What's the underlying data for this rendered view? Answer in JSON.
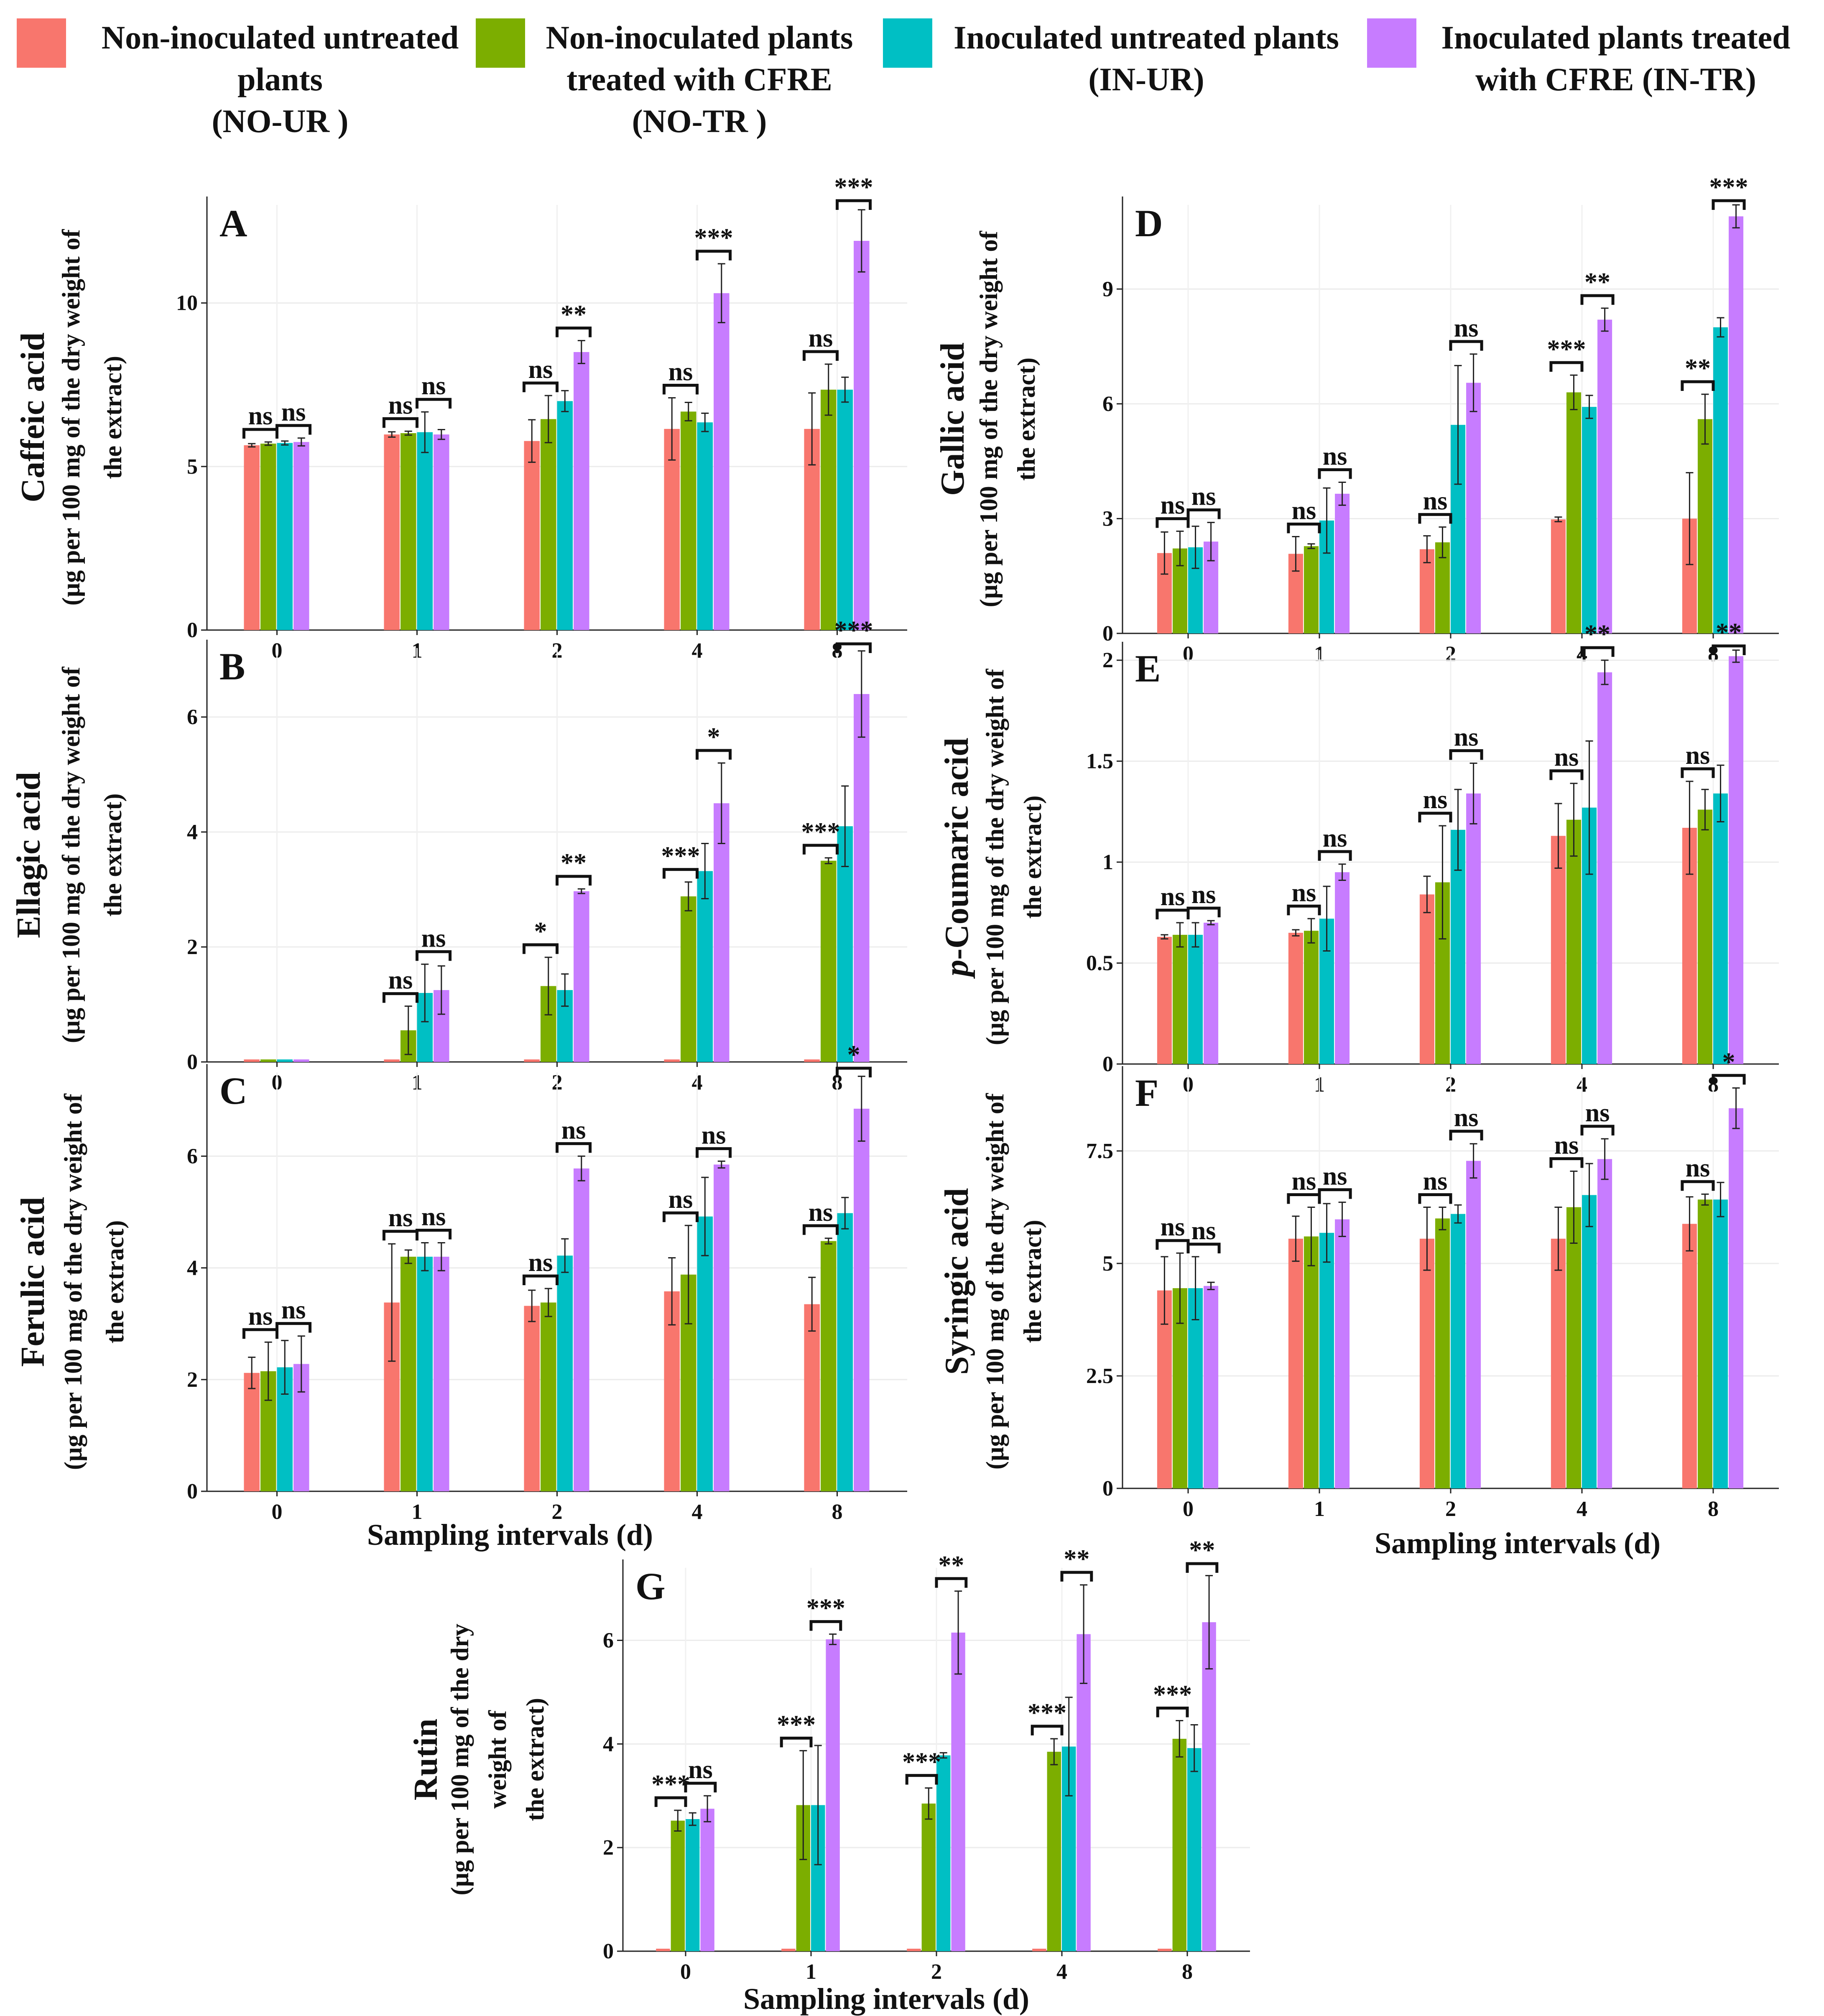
{
  "legend": {
    "items": [
      {
        "label_lines": [
          "Non-inoculated untreated",
          "plants",
          "(NO-UR )"
        ],
        "color": "#f8766d"
      },
      {
        "label_lines": [
          "Non-inoculated plants",
          "treated with CFRE",
          "(NO-TR )"
        ],
        "color": "#7cae00"
      },
      {
        "label_lines": [
          "Inoculated untreated plants",
          "(IN-UR)"
        ],
        "color": "#00bfc4"
      },
      {
        "label_lines": [
          "Inoculated plants treated",
          "with CFRE (IN-TR)"
        ],
        "color": "#c77cff"
      }
    ]
  },
  "x_axis_label": "Sampling intervals (d)",
  "chart_data": [
    {
      "id": "A",
      "type": "bar",
      "title": "Caffeic acid",
      "ylabel_lines": [
        "(µg per 100 mg of the dry weight of",
        "the extract)"
      ],
      "categories": [
        "0",
        "1",
        "2",
        "4",
        "8"
      ],
      "ylim": [
        0,
        13
      ],
      "yticks": [
        0,
        5,
        10
      ],
      "ytick_labels": [
        "0",
        "5",
        "10"
      ],
      "series": [
        {
          "name": "NO-UR",
          "values": [
            5.65,
            5.98,
            5.78,
            6.15,
            6.15
          ],
          "errors": [
            0.05,
            0.08,
            0.65,
            0.95,
            1.1
          ]
        },
        {
          "name": "NO-TR",
          "values": [
            5.7,
            6.02,
            6.45,
            6.68,
            7.35
          ],
          "errors": [
            0.05,
            0.06,
            0.72,
            0.28,
            0.78
          ]
        },
        {
          "name": "IN-UR",
          "values": [
            5.72,
            6.05,
            7.0,
            6.35,
            7.35
          ],
          "errors": [
            0.06,
            0.62,
            0.32,
            0.28,
            0.38
          ]
        },
        {
          "name": "IN-TR",
          "values": [
            5.75,
            5.98,
            8.5,
            10.3,
            11.9
          ],
          "errors": [
            0.12,
            0.15,
            0.35,
            0.9,
            0.95
          ]
        }
      ],
      "significance": [
        {
          "category": "0",
          "pair": "NO",
          "text": "ns"
        },
        {
          "category": "0",
          "pair": "IN",
          "text": "ns"
        },
        {
          "category": "1",
          "pair": "NO",
          "text": "ns"
        },
        {
          "category": "1",
          "pair": "IN",
          "text": "ns"
        },
        {
          "category": "2",
          "pair": "NO",
          "text": "ns"
        },
        {
          "category": "2",
          "pair": "IN",
          "text": "**"
        },
        {
          "category": "4",
          "pair": "NO",
          "text": "ns"
        },
        {
          "category": "4",
          "pair": "IN",
          "text": "***"
        },
        {
          "category": "8",
          "pair": "NO",
          "text": "ns"
        },
        {
          "category": "8",
          "pair": "IN",
          "text": "***"
        }
      ]
    },
    {
      "id": "B",
      "type": "bar",
      "title": "Ellagic acid",
      "ylabel_lines": [
        "(µg per 100 mg of the dry weight of",
        "the extract)"
      ],
      "categories": [
        "0",
        "1",
        "2",
        "4",
        "8"
      ],
      "ylim": [
        0,
        7.2
      ],
      "yticks": [
        0,
        2,
        4,
        6
      ],
      "ytick_labels": [
        "0",
        "2",
        "4",
        "6"
      ],
      "series": [
        {
          "name": "NO-UR",
          "values": [
            0,
            0,
            0,
            0,
            0
          ],
          "errors": [
            0,
            0,
            0,
            0,
            0
          ]
        },
        {
          "name": "NO-TR",
          "values": [
            0,
            0.55,
            1.32,
            2.88,
            3.5
          ],
          "errors": [
            0,
            0.42,
            0.5,
            0.25,
            0.05
          ]
        },
        {
          "name": "IN-UR",
          "values": [
            0,
            1.2,
            1.25,
            3.32,
            4.1
          ],
          "errors": [
            0,
            0.5,
            0.28,
            0.48,
            0.7
          ]
        },
        {
          "name": "IN-TR",
          "values": [
            0,
            1.25,
            2.97,
            4.5,
            6.4
          ],
          "errors": [
            0,
            0.42,
            0.04,
            0.7,
            0.75
          ]
        }
      ],
      "significance": [
        {
          "category": "1",
          "pair": "NO",
          "text": "ns"
        },
        {
          "category": "1",
          "pair": "IN",
          "text": "ns"
        },
        {
          "category": "2",
          "pair": "NO",
          "text": "*"
        },
        {
          "category": "2",
          "pair": "IN",
          "text": "**"
        },
        {
          "category": "4",
          "pair": "NO",
          "text": "***"
        },
        {
          "category": "4",
          "pair": "IN",
          "text": "*"
        },
        {
          "category": "8",
          "pair": "NO",
          "text": "***"
        },
        {
          "category": "8",
          "pair": "IN",
          "text": "***"
        }
      ]
    },
    {
      "id": "C",
      "type": "bar",
      "title": "Ferulic acid",
      "ylabel_lines": [
        "(µg per 100 mg of the dry weight of",
        "the extract)"
      ],
      "categories": [
        "0",
        "1",
        "2",
        "4",
        "8"
      ],
      "ylim": [
        0,
        7.5
      ],
      "yticks": [
        0,
        2,
        4,
        6
      ],
      "ytick_labels": [
        "0",
        "2",
        "4",
        "6"
      ],
      "series": [
        {
          "name": "NO-UR",
          "values": [
            2.12,
            3.38,
            3.32,
            3.58,
            3.35
          ],
          "errors": [
            0.28,
            1.05,
            0.28,
            0.6,
            0.48
          ]
        },
        {
          "name": "NO-TR",
          "values": [
            2.15,
            4.2,
            3.38,
            3.88,
            4.48
          ],
          "errors": [
            0.52,
            0.12,
            0.25,
            0.88,
            0.05
          ]
        },
        {
          "name": "IN-UR",
          "values": [
            2.22,
            4.2,
            4.22,
            4.92,
            4.98
          ],
          "errors": [
            0.48,
            0.25,
            0.3,
            0.7,
            0.28
          ]
        },
        {
          "name": "IN-TR",
          "values": [
            2.28,
            4.2,
            5.78,
            5.85,
            6.85
          ],
          "errors": [
            0.5,
            0.25,
            0.22,
            0.06,
            0.58
          ]
        }
      ],
      "significance": [
        {
          "category": "0",
          "pair": "NO",
          "text": "ns"
        },
        {
          "category": "0",
          "pair": "IN",
          "text": "ns"
        },
        {
          "category": "1",
          "pair": "NO",
          "text": "ns"
        },
        {
          "category": "1",
          "pair": "IN",
          "text": "ns"
        },
        {
          "category": "2",
          "pair": "NO",
          "text": "ns"
        },
        {
          "category": "2",
          "pair": "IN",
          "text": "ns"
        },
        {
          "category": "4",
          "pair": "NO",
          "text": "ns"
        },
        {
          "category": "4",
          "pair": "IN",
          "text": "ns"
        },
        {
          "category": "8",
          "pair": "NO",
          "text": "ns"
        },
        {
          "category": "8",
          "pair": "IN",
          "text": "*"
        }
      ]
    },
    {
      "id": "D",
      "type": "bar",
      "title": "Gallic acid",
      "ylabel_lines": [
        "(µg per 100 mg of the dry weight of",
        "the extract)"
      ],
      "categories": [
        "0",
        "1",
        "2",
        "4",
        "8"
      ],
      "ylim": [
        0,
        11.2
      ],
      "yticks": [
        0,
        3,
        6,
        9
      ],
      "ytick_labels": [
        "0",
        "3",
        "6",
        "9"
      ],
      "series": [
        {
          "name": "NO-UR",
          "values": [
            2.1,
            2.08,
            2.2,
            2.98,
            3.0
          ],
          "errors": [
            0.55,
            0.45,
            0.35,
            0.06,
            1.2
          ]
        },
        {
          "name": "NO-TR",
          "values": [
            2.22,
            2.28,
            2.38,
            6.3,
            5.6
          ],
          "errors": [
            0.45,
            0.06,
            0.4,
            0.45,
            0.65
          ]
        },
        {
          "name": "IN-UR",
          "values": [
            2.25,
            2.95,
            5.45,
            5.92,
            8.0
          ],
          "errors": [
            0.55,
            0.85,
            1.55,
            0.3,
            0.25
          ]
        },
        {
          "name": "IN-TR",
          "values": [
            2.4,
            3.65,
            6.55,
            8.2,
            10.9
          ],
          "errors": [
            0.5,
            0.3,
            0.75,
            0.3,
            0.3
          ]
        }
      ],
      "significance": [
        {
          "category": "0",
          "pair": "NO",
          "text": "ns"
        },
        {
          "category": "0",
          "pair": "IN",
          "text": "ns"
        },
        {
          "category": "1",
          "pair": "NO",
          "text": "ns"
        },
        {
          "category": "1",
          "pair": "IN",
          "text": "ns"
        },
        {
          "category": "2",
          "pair": "NO",
          "text": "ns"
        },
        {
          "category": "2",
          "pair": "IN",
          "text": "ns"
        },
        {
          "category": "4",
          "pair": "NO",
          "text": "***"
        },
        {
          "category": "4",
          "pair": "IN",
          "text": "**"
        },
        {
          "category": "8",
          "pair": "NO",
          "text": "**"
        },
        {
          "category": "8",
          "pair": "IN",
          "text": "***"
        }
      ]
    },
    {
      "id": "E",
      "type": "bar",
      "title": "p-Coumaric acid",
      "title_italic_prefix": "p",
      "ylabel_lines": [
        "(µg per 100 mg of the dry weight of",
        "the extract)"
      ],
      "categories": [
        "0",
        "1",
        "2",
        "4",
        "8"
      ],
      "ylim": [
        0,
        2.05
      ],
      "yticks": [
        0,
        0.5,
        1,
        1.5,
        2
      ],
      "ytick_labels": [
        "0",
        "0.5",
        "1",
        "1.5",
        "2"
      ],
      "series": [
        {
          "name": "NO-UR",
          "values": [
            0.63,
            0.65,
            0.84,
            1.13,
            1.17
          ],
          "errors": [
            0.01,
            0.015,
            0.09,
            0.16,
            0.23
          ]
        },
        {
          "name": "NO-TR",
          "values": [
            0.64,
            0.66,
            0.9,
            1.21,
            1.26
          ],
          "errors": [
            0.06,
            0.06,
            0.28,
            0.18,
            0.1
          ]
        },
        {
          "name": "IN-UR",
          "values": [
            0.64,
            0.72,
            1.16,
            1.27,
            1.34
          ],
          "errors": [
            0.06,
            0.16,
            0.2,
            0.33,
            0.14
          ]
        },
        {
          "name": "IN-TR",
          "values": [
            0.7,
            0.95,
            1.34,
            1.94,
            2.02
          ],
          "errors": [
            0.01,
            0.04,
            0.15,
            0.06,
            0.03
          ]
        }
      ],
      "significance": [
        {
          "category": "0",
          "pair": "NO",
          "text": "ns"
        },
        {
          "category": "0",
          "pair": "IN",
          "text": "ns"
        },
        {
          "category": "1",
          "pair": "NO",
          "text": "ns"
        },
        {
          "category": "1",
          "pair": "IN",
          "text": "ns"
        },
        {
          "category": "2",
          "pair": "NO",
          "text": "ns"
        },
        {
          "category": "2",
          "pair": "IN",
          "text": "ns"
        },
        {
          "category": "4",
          "pair": "NO",
          "text": "ns"
        },
        {
          "category": "4",
          "pair": "IN",
          "text": "**"
        },
        {
          "category": "8",
          "pair": "NO",
          "text": "ns"
        },
        {
          "category": "8",
          "pair": "IN",
          "text": "**"
        }
      ]
    },
    {
      "id": "F",
      "type": "bar",
      "title": "Syringic acid",
      "ylabel_lines": [
        "(µg per 100 mg of the dry weight of",
        "the extract)"
      ],
      "categories": [
        "0",
        "1",
        "2",
        "4",
        "8"
      ],
      "ylim": [
        0,
        9.2
      ],
      "yticks": [
        0,
        2.5,
        5,
        7.5
      ],
      "ytick_labels": [
        "0",
        "2.5",
        "5",
        "7.5"
      ],
      "series": [
        {
          "name": "NO-UR",
          "values": [
            4.4,
            5.55,
            5.55,
            5.55,
            5.88
          ],
          "errors": [
            0.75,
            0.5,
            0.7,
            0.7,
            0.6
          ]
        },
        {
          "name": "NO-TR",
          "values": [
            4.45,
            5.6,
            6.0,
            6.25,
            6.42
          ],
          "errors": [
            0.78,
            0.65,
            0.25,
            0.8,
            0.12
          ]
        },
        {
          "name": "IN-UR",
          "values": [
            4.45,
            5.68,
            6.1,
            6.52,
            6.42
          ],
          "errors": [
            0.7,
            0.65,
            0.2,
            0.7,
            0.38
          ]
        },
        {
          "name": "IN-TR",
          "values": [
            4.5,
            5.98,
            7.28,
            7.32,
            8.45
          ],
          "errors": [
            0.08,
            0.38,
            0.38,
            0.45,
            0.45
          ]
        }
      ],
      "significance": [
        {
          "category": "0",
          "pair": "NO",
          "text": "ns"
        },
        {
          "category": "0",
          "pair": "IN",
          "text": "ns"
        },
        {
          "category": "1",
          "pair": "NO",
          "text": "ns"
        },
        {
          "category": "1",
          "pair": "IN",
          "text": "ns"
        },
        {
          "category": "2",
          "pair": "NO",
          "text": "ns"
        },
        {
          "category": "2",
          "pair": "IN",
          "text": "ns"
        },
        {
          "category": "4",
          "pair": "NO",
          "text": "ns"
        },
        {
          "category": "4",
          "pair": "IN",
          "text": "ns"
        },
        {
          "category": "8",
          "pair": "NO",
          "text": "ns"
        },
        {
          "category": "8",
          "pair": "IN",
          "text": "*"
        }
      ]
    },
    {
      "id": "G",
      "type": "bar",
      "title": "Rutin",
      "ylabel_lines": [
        "(µg per 100 mg of the dry",
        "weight of",
        "the extract)"
      ],
      "categories": [
        "0",
        "1",
        "2",
        "4",
        "8"
      ],
      "ylim": [
        0,
        7.4
      ],
      "yticks": [
        0,
        2,
        4,
        6
      ],
      "ytick_labels": [
        "0",
        "2",
        "4",
        "6"
      ],
      "series": [
        {
          "name": "NO-UR",
          "values": [
            0,
            0,
            0,
            0,
            0
          ],
          "errors": [
            0,
            0,
            0,
            0,
            0
          ]
        },
        {
          "name": "NO-TR",
          "values": [
            2.52,
            2.82,
            2.85,
            3.85,
            4.1
          ],
          "errors": [
            0.2,
            1.05,
            0.3,
            0.25,
            0.35
          ]
        },
        {
          "name": "IN-UR",
          "values": [
            2.55,
            2.82,
            3.78,
            3.95,
            3.92
          ],
          "errors": [
            0.12,
            1.15,
            0.05,
            0.95,
            0.45
          ]
        },
        {
          "name": "IN-TR",
          "values": [
            2.75,
            6.02,
            6.15,
            6.12,
            6.35
          ],
          "errors": [
            0.25,
            0.1,
            0.8,
            0.95,
            0.9
          ]
        }
      ],
      "significance": [
        {
          "category": "0",
          "pair": "NO",
          "text": "***"
        },
        {
          "category": "0",
          "pair": "IN",
          "text": "ns"
        },
        {
          "category": "1",
          "pair": "NO",
          "text": "***"
        },
        {
          "category": "1",
          "pair": "IN",
          "text": "***"
        },
        {
          "category": "2",
          "pair": "NO",
          "text": "***"
        },
        {
          "category": "2",
          "pair": "IN",
          "text": "**"
        },
        {
          "category": "4",
          "pair": "NO",
          "text": "***"
        },
        {
          "category": "4",
          "pair": "IN",
          "text": "**"
        },
        {
          "category": "8",
          "pair": "NO",
          "text": "***"
        },
        {
          "category": "8",
          "pair": "IN",
          "text": "**"
        }
      ]
    }
  ]
}
